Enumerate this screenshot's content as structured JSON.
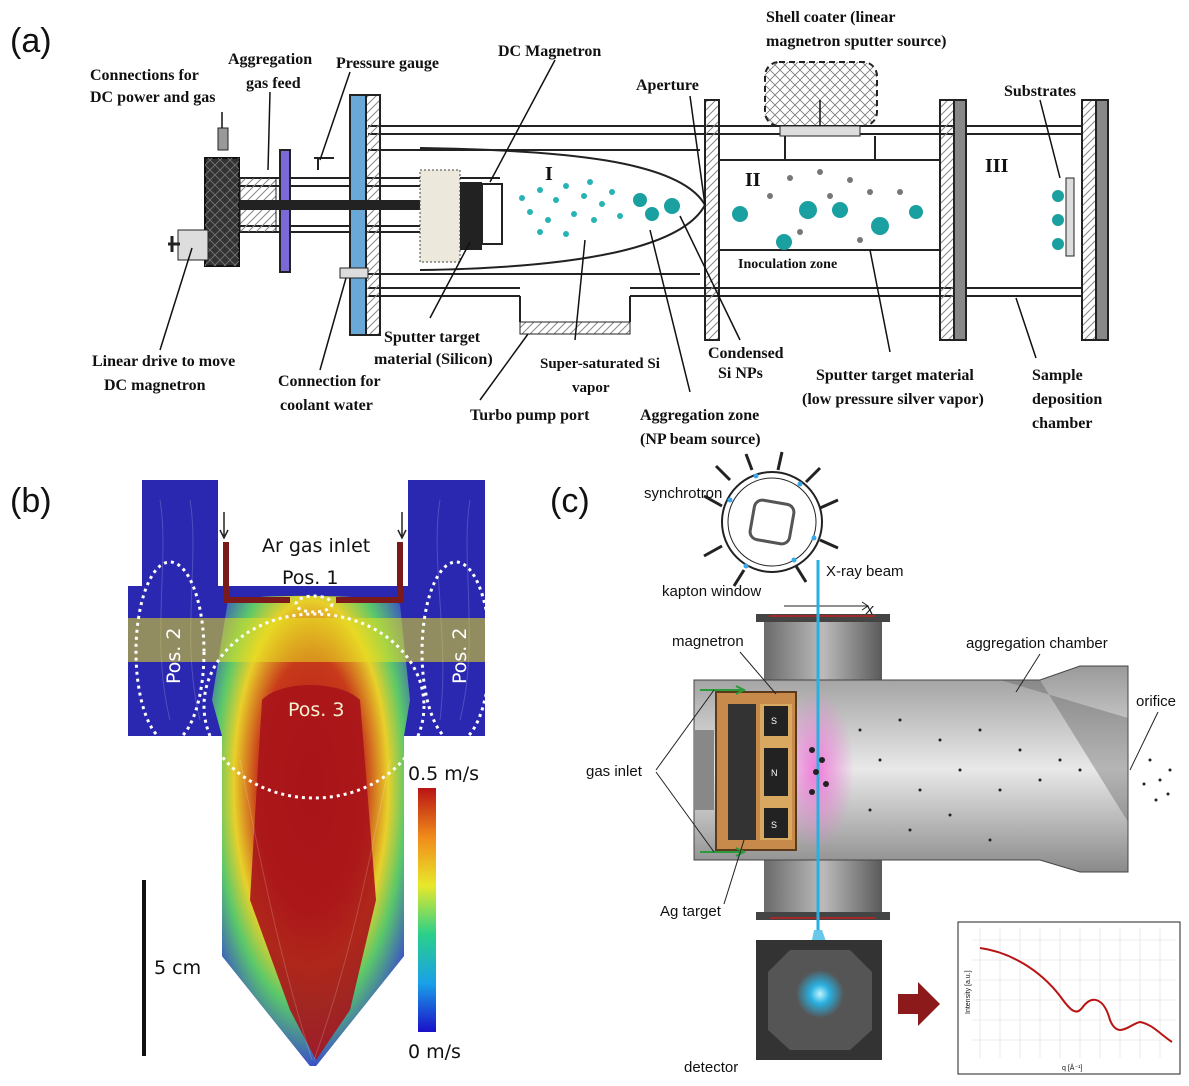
{
  "panel_a": {
    "letter": "(a)",
    "labels": {
      "connections": [
        "Connections for",
        "DC power and gas"
      ],
      "gas_feed": [
        "Aggregation",
        "gas feed"
      ],
      "pressure_gauge": "Pressure gauge",
      "dc_magnetron": "DC Magnetron",
      "aperture": "Aperture",
      "shell_coater": [
        "Shell coater (linear",
        "magnetron sputter source)"
      ],
      "substrates": "Substrates",
      "linear_drive": [
        "Linear drive to move",
        "DC magnetron"
      ],
      "coolant": [
        "Connection for",
        "coolant water"
      ],
      "sputter_si": [
        "Sputter target",
        "material (Silicon)"
      ],
      "turbo": "Turbo pump port",
      "supersat": [
        "Super-saturated Si",
        "vapor"
      ],
      "aggregation_zone": [
        "Aggregation zone",
        "(NP beam source)"
      ],
      "condensed": [
        "Condensed",
        "Si NPs"
      ],
      "sputter_ag": [
        "Sputter target material",
        "(low pressure silver vapor)"
      ],
      "sample_chamber": [
        "Sample",
        "deposition",
        "chamber"
      ],
      "inoculation": "Inoculation zone",
      "zone_1": "I",
      "zone_2": "II",
      "zone_3": "III"
    }
  },
  "panel_b": {
    "letter": "(b)",
    "labels": {
      "ar_inlet": "Ar gas inlet",
      "pos1": "Pos. 1",
      "pos2": "Pos. 2",
      "pos3": "Pos. 3",
      "scale_max": "0.5 m/s",
      "scale_min": "0 m/s",
      "scale_bar": "5 cm"
    },
    "colors": {
      "low": "#1a10c8",
      "high": "#b81414"
    }
  },
  "panel_c": {
    "letter": "(c)",
    "labels": {
      "synchrotron": "synchrotron",
      "xray": "X-ray beam",
      "kapton": "kapton window",
      "x_axis": "x",
      "magnetron": "magnetron",
      "aggregation_chamber": "aggregation chamber",
      "orifice": "orifice",
      "gas_inlet": "gas inlet",
      "ag_target": "Ag target",
      "detector": "detector",
      "pole_s": "S",
      "pole_n": "N",
      "plot_ylabel": "Intensity [a.u.]",
      "plot_xlabel": "q [Å⁻¹]"
    },
    "colors": {
      "beam": "#2ab0e0",
      "arrow": "#8c1a1a"
    }
  }
}
